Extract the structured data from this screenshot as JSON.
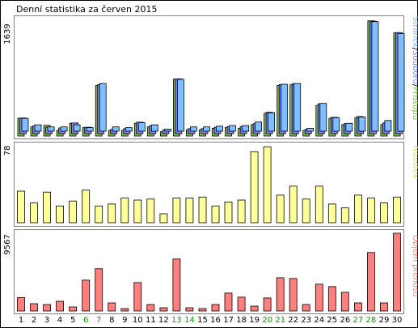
{
  "chart_data": [
    {
      "type": "bar",
      "title": "Denní statistika za červen 2015",
      "categories": [
        "1",
        "2",
        "3",
        "4",
        "5",
        "6",
        "7",
        "8",
        "9",
        "10",
        "11",
        "12",
        "13",
        "14",
        "15",
        "16",
        "17",
        "18",
        "19",
        "20",
        "21",
        "22",
        "23",
        "24",
        "25",
        "26",
        "27",
        "28",
        "29",
        "30"
      ],
      "ylim": [
        0,
        1639
      ],
      "ymax_label": "1639",
      "series": [
        {
          "name": "Přístupů",
          "color": "#7fbf3f",
          "values": [
            250,
            130,
            150,
            80,
            180,
            120,
            710,
            80,
            80,
            180,
            130,
            60,
            800,
            90,
            90,
            110,
            120,
            110,
            160,
            320,
            710,
            720,
            80,
            430,
            250,
            160,
            260,
            1620,
            160,
            1450
          ]
        },
        {
          "name": "Souborů",
          "color": "#7f7fff",
          "values": [
            220,
            110,
            90,
            80,
            150,
            90,
            690,
            60,
            70,
            160,
            110,
            50,
            770,
            70,
            70,
            90,
            100,
            100,
            140,
            300,
            690,
            700,
            60,
            420,
            230,
            140,
            240,
            1580,
            150,
            1420
          ]
        },
        {
          "name": "Stránek",
          "color": "#7fbfff",
          "values": [
            180,
            90,
            60,
            60,
            90,
            50,
            670,
            60,
            50,
            120,
            90,
            30,
            730,
            60,
            60,
            70,
            80,
            80,
            130,
            260,
            660,
            670,
            40,
            390,
            190,
            110,
            200,
            1540,
            150,
            1370
          ]
        }
      ],
      "legend_separators": [
        "/",
        "/"
      ]
    },
    {
      "type": "bar",
      "categories": [
        "1",
        "2",
        "3",
        "4",
        "5",
        "6",
        "7",
        "8",
        "9",
        "10",
        "11",
        "12",
        "13",
        "14",
        "15",
        "16",
        "17",
        "18",
        "19",
        "20",
        "21",
        "22",
        "23",
        "24",
        "25",
        "26",
        "27",
        "28",
        "29",
        "30"
      ],
      "ylim": [
        0,
        78
      ],
      "ymax_label": "78",
      "series": [
        {
          "name": "Návštěv",
          "color": "#ffff99",
          "values": [
            32,
            20,
            31,
            17,
            22,
            33,
            17,
            19,
            25,
            23,
            24,
            9,
            25,
            25,
            26,
            17,
            21,
            23,
            72,
            77,
            28,
            37,
            24,
            37,
            19,
            15,
            28,
            25,
            20,
            26
          ]
        }
      ]
    },
    {
      "type": "bar",
      "categories": [
        "1",
        "2",
        "3",
        "4",
        "5",
        "6",
        "7",
        "8",
        "9",
        "10",
        "11",
        "12",
        "13",
        "14",
        "15",
        "16",
        "17",
        "18",
        "19",
        "20",
        "21",
        "22",
        "23",
        "24",
        "25",
        "26",
        "27",
        "28",
        "29",
        "30"
      ],
      "ylim": [
        0,
        9567
      ],
      "ymax_label": "9567",
      "series": [
        {
          "name": "Objem přenosu",
          "color": "#ff7f7f",
          "values": [
            1650,
            900,
            800,
            1200,
            500,
            3800,
            5200,
            1000,
            300,
            3500,
            800,
            400,
            6400,
            400,
            300,
            800,
            2200,
            1700,
            600,
            1600,
            4100,
            4000,
            800,
            3300,
            3000,
            2300,
            1000,
            7200,
            1000,
            9567
          ]
        }
      ]
    }
  ],
  "day_labels_weekend": [
    "6",
    "7",
    "13",
    "14",
    "20",
    "21",
    "27",
    "28"
  ],
  "colors": {
    "weekday_label": "#000000",
    "weekend_label": "#00a000",
    "frame": "#000000",
    "panel_border": "#808080",
    "panel_bg": "#ffffff"
  }
}
